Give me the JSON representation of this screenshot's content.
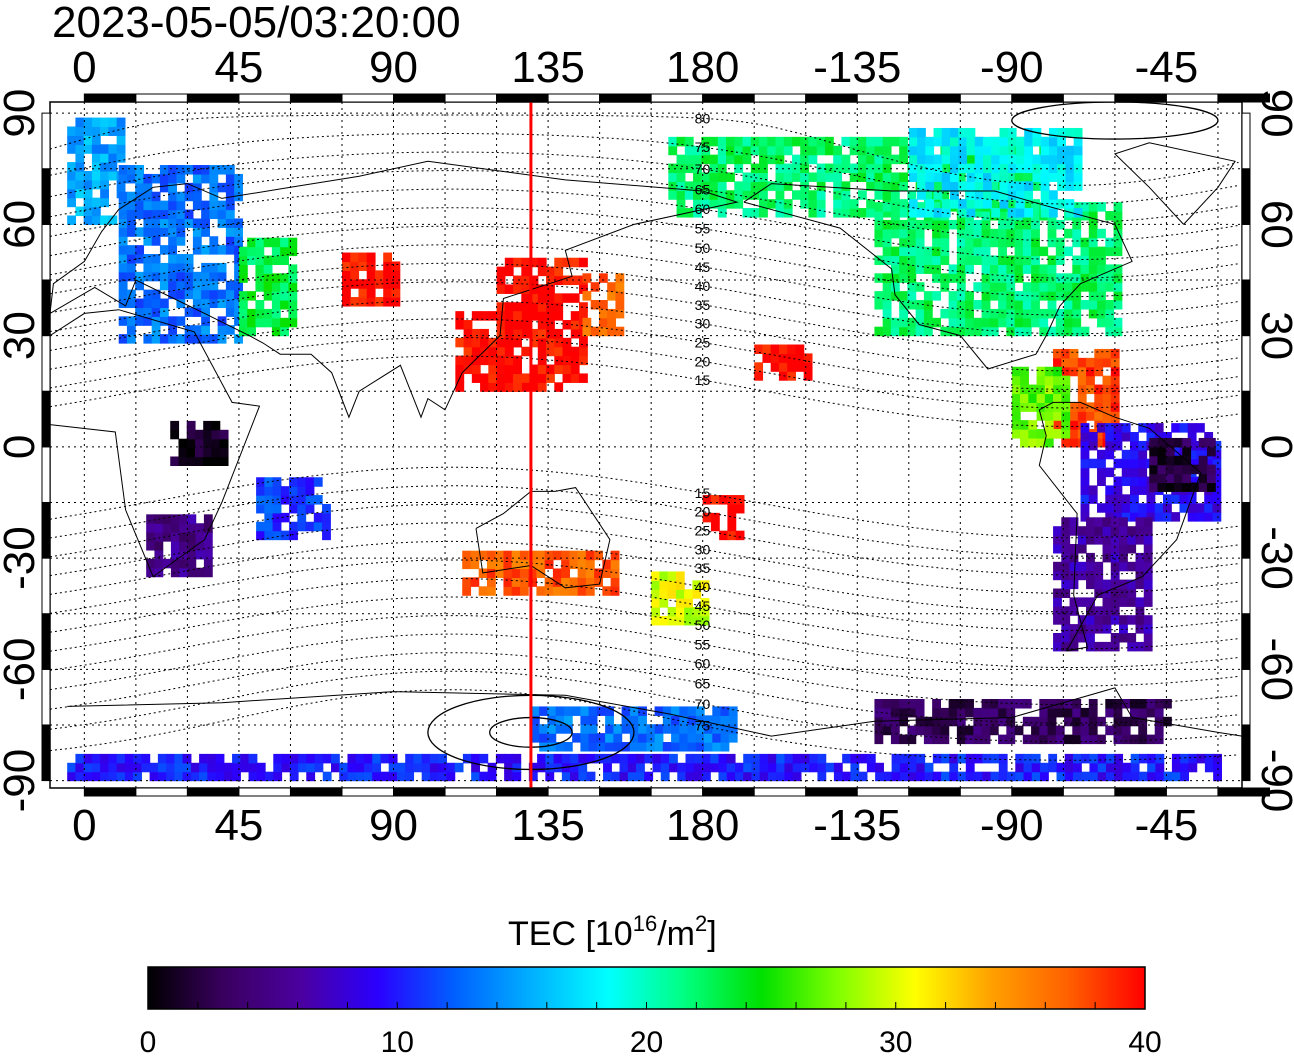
{
  "timestamp": "2023-05-05/03:20:00",
  "map": {
    "lon_ticks": [
      "0",
      "45",
      "90",
      "135",
      "180",
      "-135",
      "-90",
      "-45"
    ],
    "lon_values": [
      0,
      45,
      90,
      135,
      180,
      225,
      270,
      315
    ],
    "lat_ticks": [
      "90",
      "60",
      "30",
      "0",
      "-30",
      "-60",
      "-90"
    ],
    "lat_values": [
      90,
      60,
      30,
      0,
      -30,
      -60,
      -90
    ],
    "lon_range": [
      -10,
      337
    ],
    "lat_range": [
      -92,
      93
    ],
    "grid": "dotted, every 15 degrees",
    "marker_longitude": 130,
    "marker_color": "#ff0000",
    "contour_labels": [
      "80",
      "75",
      "70",
      "65",
      "60",
      "55",
      "50",
      "45",
      "40",
      "35",
      "30",
      "25",
      "20",
      "15",
      "15",
      "20",
      "25",
      "30",
      "35",
      "40",
      "45",
      "50",
      "55",
      "60",
      "65",
      "70",
      "75"
    ],
    "contour_label_lats": [
      80,
      75,
      70,
      65,
      60,
      55,
      50,
      45,
      40,
      35,
      30,
      25,
      20,
      15,
      -15,
      -20,
      -25,
      -30,
      -35,
      -40,
      -45,
      -50,
      -55,
      -60,
      -65,
      -70,
      -75
    ],
    "contour_label_lon": 180
  },
  "colorbar": {
    "title_prefix": "TEC  [10",
    "title_exp": "16",
    "title_mid": "/m",
    "title_exp2": "2",
    "title_suffix": "]",
    "ticks": [
      "0",
      "10",
      "20",
      "30",
      "40"
    ],
    "tick_values": [
      0,
      10,
      20,
      30,
      40
    ],
    "range": [
      0,
      40
    ],
    "colors": [
      "#000000",
      "#3a0060",
      "#4b00a0",
      "#2a00ff",
      "#0060ff",
      "#00b0ff",
      "#00ffff",
      "#00ff80",
      "#00e000",
      "#80ff00",
      "#ffff00",
      "#ffa000",
      "#ff6000",
      "#ff0000"
    ]
  },
  "tec_regions": [
    {
      "lon": [
        -5,
        10
      ],
      "lat": [
        60,
        88
      ],
      "tec": 15
    },
    {
      "lon": [
        10,
        45
      ],
      "lat": [
        28,
        75
      ],
      "tec": 13
    },
    {
      "lon": [
        45,
        60
      ],
      "lat": [
        30,
        55
      ],
      "tec": 23
    },
    {
      "lon": [
        75,
        90
      ],
      "lat": [
        38,
        50
      ],
      "tec": 40
    },
    {
      "lon": [
        120,
        145
      ],
      "lat": [
        15,
        50
      ],
      "tec": 40
    },
    {
      "lon": [
        108,
        125
      ],
      "lat": [
        15,
        35
      ],
      "tec": 40
    },
    {
      "lon": [
        145,
        155
      ],
      "lat": [
        30,
        45
      ],
      "tec": 37
    },
    {
      "lon": [
        195,
        210
      ],
      "lat": [
        18,
        27
      ],
      "tec": 40
    },
    {
      "lon": [
        170,
        280
      ],
      "lat": [
        62,
        82
      ],
      "tec": 22
    },
    {
      "lon": [
        230,
        300
      ],
      "lat": [
        30,
        65
      ],
      "tec": 22
    },
    {
      "lon": [
        240,
        290
      ],
      "lat": [
        62,
        85
      ],
      "tec": 18
    },
    {
      "lon": [
        282,
        300
      ],
      "lat": [
        0,
        25
      ],
      "tec": 38
    },
    {
      "lon": [
        270,
        285
      ],
      "lat": [
        0,
        20
      ],
      "tec": 27
    },
    {
      "lon": [
        290,
        330
      ],
      "lat": [
        -20,
        5
      ],
      "tec": 9
    },
    {
      "lon": [
        282,
        310
      ],
      "lat": [
        -55,
        -20
      ],
      "tec": 6
    },
    {
      "lon": [
        310,
        328
      ],
      "lat": [
        -12,
        2
      ],
      "tec": 2
    },
    {
      "lon": [
        25,
        40
      ],
      "lat": [
        -5,
        5
      ],
      "tec": 1
    },
    {
      "lon": [
        18,
        35
      ],
      "lat": [
        -35,
        -20
      ],
      "tec": 5
    },
    {
      "lon": [
        50,
        70
      ],
      "lat": [
        -25,
        -10
      ],
      "tec": 11
    },
    {
      "lon": [
        165,
        180
      ],
      "lat": [
        -48,
        -35
      ],
      "tec": 30
    },
    {
      "lon": [
        180,
        190
      ],
      "lat": [
        -25,
        -15
      ],
      "tec": 40
    },
    {
      "lon": [
        110,
        155
      ],
      "lat": [
        -40,
        -30
      ],
      "tec": 37
    },
    {
      "lon": [
        130,
        190
      ],
      "lat": [
        -82,
        -72
      ],
      "tec": 13
    },
    {
      "lon": [
        230,
        315
      ],
      "lat": [
        -80,
        -68
      ],
      "tec": 3
    },
    {
      "lon": [
        -5,
        330
      ],
      "lat": [
        -90,
        -85
      ],
      "tec": 10
    }
  ]
}
